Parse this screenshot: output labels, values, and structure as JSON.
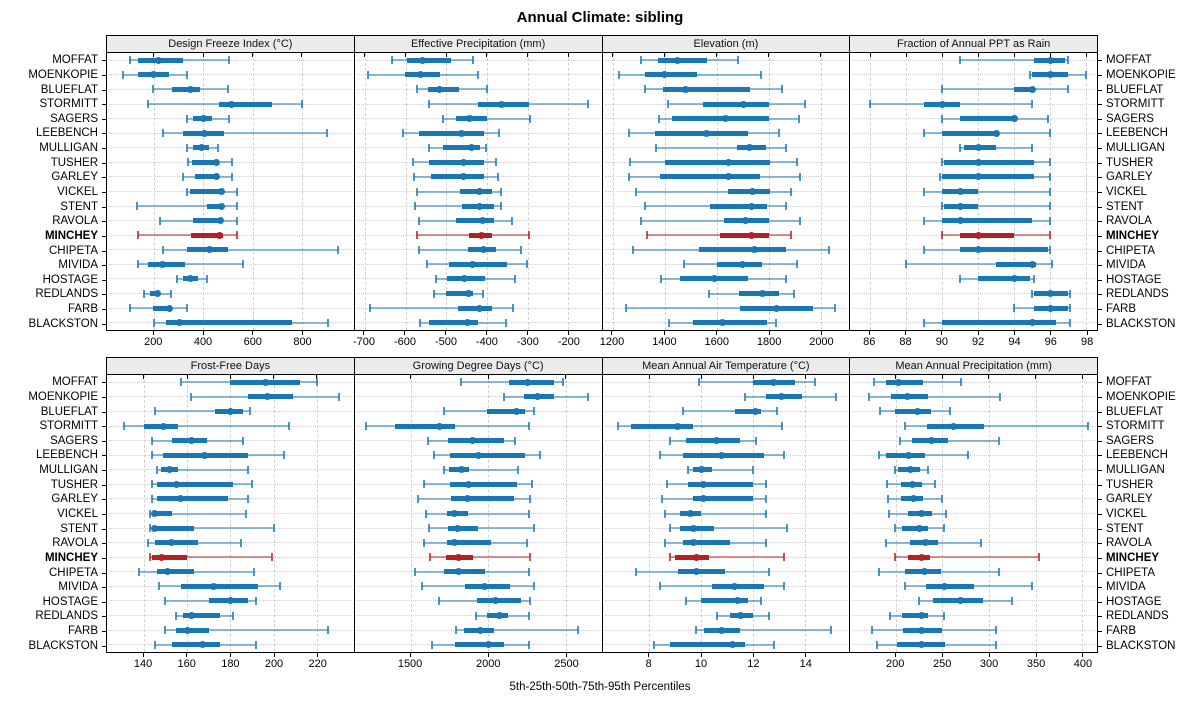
{
  "title": "Annual Climate: sibling",
  "caption": "5th-25th-50th-75th-95th Percentiles",
  "percentile_labels": [
    5,
    25,
    50,
    75,
    95
  ],
  "stations": [
    "MOFFAT",
    "MOENKOPIE",
    "BLUEFLAT",
    "STORMITT",
    "SAGERS",
    "LEEBENCH",
    "MULLIGAN",
    "TUSHER",
    "GARLEY",
    "VICKEL",
    "STENT",
    "RAVOLA",
    "MINCHEY",
    "CHIPETA",
    "MIVIDA",
    "HOSTAGE",
    "REDLANDS",
    "FARB",
    "BLACKSTON"
  ],
  "highlighted_station": "MINCHEY",
  "colors": {
    "series": "#1b77b4",
    "highlight": "#b22222",
    "strip_bg": "#ebebeb",
    "gridline": "#d2d2d2"
  },
  "chart_data": [
    {
      "type": "percentile-dotplot",
      "title": "Design Freeze Index (°C)",
      "xlim": [
        10,
        1010
      ],
      "ticks": [
        200,
        400,
        600,
        800
      ],
      "values": [
        [
          105,
          135,
          220,
          320,
          505
        ],
        [
          75,
          135,
          200,
          260,
          335
        ],
        [
          195,
          275,
          350,
          385,
          500
        ],
        [
          175,
          465,
          515,
          680,
          800
        ],
        [
          335,
          360,
          400,
          435,
          505
        ],
        [
          235,
          320,
          405,
          485,
          900
        ],
        [
          335,
          360,
          395,
          425,
          460
        ],
        [
          340,
          355,
          455,
          465,
          515
        ],
        [
          320,
          365,
          455,
          465,
          515
        ],
        [
          335,
          345,
          475,
          480,
          535
        ],
        [
          130,
          415,
          475,
          480,
          535
        ],
        [
          225,
          360,
          470,
          475,
          535
        ],
        [
          135,
          350,
          465,
          480,
          535
        ],
        [
          235,
          335,
          425,
          500,
          945
        ],
        [
          135,
          175,
          235,
          325,
          560
        ],
        [
          295,
          320,
          350,
          380,
          415
        ],
        [
          160,
          185,
          215,
          225,
          270
        ],
        [
          105,
          195,
          263,
          267,
          335
        ],
        [
          200,
          250,
          305,
          760,
          905
        ]
      ]
    },
    {
      "type": "percentile-dotplot",
      "title": "Effective Precipitation (mm)",
      "xlim": [
        -725,
        -118
      ],
      "ticks": [
        -700,
        -600,
        -500,
        -400,
        -300,
        -200
      ],
      "values": [
        [
          -633,
          -596,
          -558,
          -488,
          -433
        ],
        [
          -693,
          -602,
          -563,
          -515,
          -423
        ],
        [
          -573,
          -546,
          -517,
          -468,
          -400
        ],
        [
          -542,
          -423,
          -364,
          -296,
          -150
        ],
        [
          -507,
          -475,
          -442,
          -400,
          -293
        ],
        [
          -607,
          -567,
          -463,
          -408,
          -369
        ],
        [
          -543,
          -508,
          -438,
          -417,
          -402
        ],
        [
          -582,
          -542,
          -458,
          -408,
          -377
        ],
        [
          -579,
          -538,
          -458,
          -408,
          -373
        ],
        [
          -573,
          -466,
          -417,
          -388,
          -365
        ],
        [
          -577,
          -462,
          -418,
          -383,
          -365
        ],
        [
          -567,
          -475,
          -410,
          -383,
          -338
        ],
        [
          -571,
          -443,
          -414,
          -388,
          -296
        ],
        [
          -567,
          -446,
          -408,
          -377,
          -315
        ],
        [
          -548,
          -492,
          -436,
          -350,
          -302
        ],
        [
          -525,
          -498,
          -454,
          -404,
          -332
        ],
        [
          -529,
          -500,
          -444,
          -433,
          -410
        ],
        [
          -688,
          -471,
          -417,
          -388,
          -336
        ],
        [
          -565,
          -542,
          -448,
          -421,
          -352
        ]
      ]
    },
    {
      "type": "percentile-dotplot",
      "title": "Elevation (m)",
      "xlim": [
        1160,
        2110
      ],
      "ticks": [
        1200,
        1400,
        1600,
        1800,
        2000
      ],
      "values": [
        [
          1310,
          1374,
          1448,
          1561,
          1681
        ],
        [
          1222,
          1323,
          1400,
          1523,
          1772
        ],
        [
          1323,
          1394,
          1480,
          1729,
          1852
        ],
        [
          1413,
          1548,
          1703,
          1800,
          1938
        ],
        [
          1378,
          1426,
          1632,
          1800,
          1916
        ],
        [
          1262,
          1361,
          1559,
          1719,
          1839
        ],
        [
          1365,
          1677,
          1726,
          1790,
          1868
        ],
        [
          1265,
          1400,
          1645,
          1804,
          1907
        ],
        [
          1262,
          1381,
          1645,
          1765,
          1920
        ],
        [
          1290,
          1645,
          1739,
          1806,
          1884
        ],
        [
          1323,
          1574,
          1733,
          1793,
          1868
        ],
        [
          1310,
          1626,
          1712,
          1800,
          1920
        ],
        [
          1333,
          1613,
          1735,
          1800,
          1887
        ],
        [
          1277,
          1532,
          1745,
          1867,
          2032
        ],
        [
          1475,
          1600,
          1700,
          1774,
          1907
        ],
        [
          1387,
          1458,
          1591,
          1719,
          1867
        ],
        [
          1570,
          1684,
          1777,
          1841,
          1897
        ],
        [
          1249,
          1690,
          1828,
          1970,
          2055
        ],
        [
          1417,
          1510,
          1623,
          1793,
          1828
        ]
      ]
    },
    {
      "type": "percentile-dotplot",
      "title": "Fraction of Annual PPT as Rain",
      "xlim": [
        84.9,
        98.6
      ],
      "ticks": [
        86,
        88,
        90,
        92,
        94,
        96,
        98
      ],
      "values": [
        [
          91,
          95.1,
          96,
          96.8,
          97
        ],
        [
          94.9,
          95,
          96,
          97,
          98
        ],
        [
          90,
          94,
          95,
          95.1,
          97
        ],
        [
          86,
          89,
          90,
          91,
          95
        ],
        [
          90,
          91,
          94,
          94.1,
          95.9
        ],
        [
          89,
          90,
          93,
          93.1,
          96
        ],
        [
          91,
          91.2,
          92,
          93,
          95
        ],
        [
          90,
          90.1,
          92,
          95.1,
          96
        ],
        [
          89.9,
          90,
          92,
          95.1,
          96
        ],
        [
          89,
          90,
          91,
          92,
          96
        ],
        [
          90,
          90.1,
          91,
          92,
          96
        ],
        [
          89,
          90,
          91,
          95,
          96
        ],
        [
          90,
          91,
          92,
          94,
          96
        ],
        [
          89,
          91,
          92,
          95.9,
          96
        ],
        [
          88,
          93,
          95,
          95.2,
          96.1
        ],
        [
          91,
          92,
          94,
          94.9,
          95.1
        ],
        [
          95,
          95.1,
          96,
          97,
          97.1
        ],
        [
          94,
          95.1,
          96,
          97,
          97.1
        ],
        [
          89,
          90,
          95,
          96.3,
          97.1
        ]
      ]
    },
    {
      "type": "percentile-dotplot",
      "title": "Frost-Free Days",
      "xlim": [
        123,
        237
      ],
      "ticks": [
        140,
        160,
        180,
        200,
        220
      ],
      "values": [
        [
          157,
          180,
          196,
          212,
          220
        ],
        [
          162,
          188,
          197,
          209,
          230
        ],
        [
          145,
          173,
          180,
          186,
          189
        ],
        [
          131,
          140,
          149,
          156,
          207
        ],
        [
          144,
          153,
          162,
          169,
          186
        ],
        [
          144,
          149,
          168,
          188,
          205
        ],
        [
          146,
          148,
          152,
          156,
          188
        ],
        [
          144,
          146,
          155,
          181,
          190
        ],
        [
          144,
          146,
          157,
          179,
          188
        ],
        [
          143,
          144,
          145,
          153,
          187
        ],
        [
          143,
          144,
          145,
          163,
          200
        ],
        [
          142,
          145,
          153,
          165,
          185
        ],
        [
          143,
          144,
          148,
          160,
          199
        ],
        [
          138,
          146,
          151,
          163,
          191
        ],
        [
          147,
          157,
          172,
          193,
          203
        ],
        [
          150,
          170,
          180,
          188,
          192
        ],
        [
          155,
          158,
          162,
          175,
          181
        ],
        [
          150,
          155,
          160,
          170,
          225
        ],
        [
          145,
          153,
          167,
          175,
          192
        ]
      ]
    },
    {
      "type": "percentile-dotplot",
      "title": "Growing Degree Days (°C)",
      "xlim": [
        1140,
        2730
      ],
      "ticks": [
        1500,
        2000,
        2500
      ],
      "values": [
        [
          1825,
          2135,
          2250,
          2425,
          2480
        ],
        [
          2100,
          2230,
          2315,
          2425,
          2640
        ],
        [
          1715,
          1990,
          2185,
          2235,
          2295
        ],
        [
          1215,
          1400,
          1685,
          1785,
          2260
        ],
        [
          1610,
          1740,
          1900,
          2100,
          2170
        ],
        [
          1650,
          1755,
          1940,
          2240,
          2335
        ],
        [
          1715,
          1750,
          1825,
          1875,
          2190
        ],
        [
          1585,
          1755,
          1870,
          2185,
          2285
        ],
        [
          1550,
          1760,
          1865,
          2165,
          2270
        ],
        [
          1600,
          1735,
          1785,
          1870,
          2260
        ],
        [
          1620,
          1740,
          1800,
          1935,
          2295
        ],
        [
          1585,
          1735,
          1785,
          2020,
          2250
        ],
        [
          1625,
          1725,
          1810,
          1900,
          2270
        ],
        [
          1530,
          1715,
          1810,
          1980,
          2265
        ],
        [
          1575,
          1850,
          1975,
          2140,
          2295
        ],
        [
          1685,
          1925,
          2050,
          2210,
          2270
        ],
        [
          1920,
          1990,
          2070,
          2130,
          2260
        ],
        [
          1795,
          1845,
          1950,
          2035,
          2580
        ],
        [
          1640,
          1785,
          2005,
          2100,
          2260
        ]
      ]
    },
    {
      "type": "percentile-dotplot",
      "title": "Mean Annual Air Temperature (°C)",
      "xlim": [
        6.2,
        15.7
      ],
      "ticks": [
        8,
        10,
        12,
        14
      ],
      "values": [
        [
          9.9,
          12.0,
          12.8,
          13.6,
          14.4
        ],
        [
          11.7,
          12.5,
          13.1,
          13.9,
          15.2
        ],
        [
          9.3,
          11.3,
          12.1,
          12.3,
          12.9
        ],
        [
          6.8,
          7.3,
          9.1,
          9.7,
          13.1
        ],
        [
          8.8,
          9.4,
          10.6,
          11.5,
          12.1
        ],
        [
          8.4,
          9.3,
          10.8,
          12.4,
          13.2
        ],
        [
          9.5,
          9.7,
          10.0,
          10.4,
          12.0
        ],
        [
          8.7,
          9.5,
          10.1,
          12.0,
          12.5
        ],
        [
          8.5,
          9.7,
          10.1,
          12.0,
          12.5
        ],
        [
          8.6,
          9.2,
          9.6,
          10.0,
          12.5
        ],
        [
          8.8,
          9.2,
          9.7,
          10.5,
          13.3
        ],
        [
          8.6,
          9.3,
          9.7,
          11.1,
          12.5
        ],
        [
          8.8,
          9.0,
          9.8,
          10.3,
          13.2
        ],
        [
          7.5,
          9.1,
          9.8,
          10.9,
          12.6
        ],
        [
          8.4,
          10.4,
          11.3,
          12.4,
          13.2
        ],
        [
          9.4,
          10.0,
          11.4,
          11.8,
          12.3
        ],
        [
          10.6,
          11.1,
          11.5,
          12.0,
          12.6
        ],
        [
          9.8,
          10.1,
          10.8,
          11.5,
          15.0
        ],
        [
          8.2,
          8.8,
          11.2,
          11.7,
          12.8
        ]
      ]
    },
    {
      "type": "percentile-dotplot",
      "title": "Mean Annual Precipitation (mm)",
      "xlim": [
        151,
        416
      ],
      "ticks": [
        200,
        250,
        300,
        350,
        400
      ],
      "values": [
        [
          177,
          189,
          203,
          229,
          270
        ],
        [
          171,
          195,
          213,
          235,
          312
        ],
        [
          183,
          199,
          223,
          238,
          258
        ],
        [
          210,
          233,
          262,
          295,
          406
        ],
        [
          204,
          217,
          238,
          256,
          311
        ],
        [
          182,
          189,
          214,
          231,
          277
        ],
        [
          199,
          202,
          216,
          226,
          235
        ],
        [
          191,
          206,
          218,
          228,
          242
        ],
        [
          192,
          205,
          219,
          229,
          249
        ],
        [
          193,
          213,
          227,
          239,
          254
        ],
        [
          199,
          207,
          225,
          235,
          252
        ],
        [
          189,
          215,
          232,
          245,
          291
        ],
        [
          199,
          213,
          228,
          237,
          354
        ],
        [
          182,
          210,
          231,
          249,
          311
        ],
        [
          210,
          232,
          252,
          284,
          346
        ],
        [
          225,
          240,
          269,
          294,
          325
        ],
        [
          194,
          207,
          228,
          235,
          252
        ],
        [
          174,
          208,
          228,
          250,
          308
        ],
        [
          180,
          201,
          227,
          253,
          307
        ]
      ]
    }
  ]
}
